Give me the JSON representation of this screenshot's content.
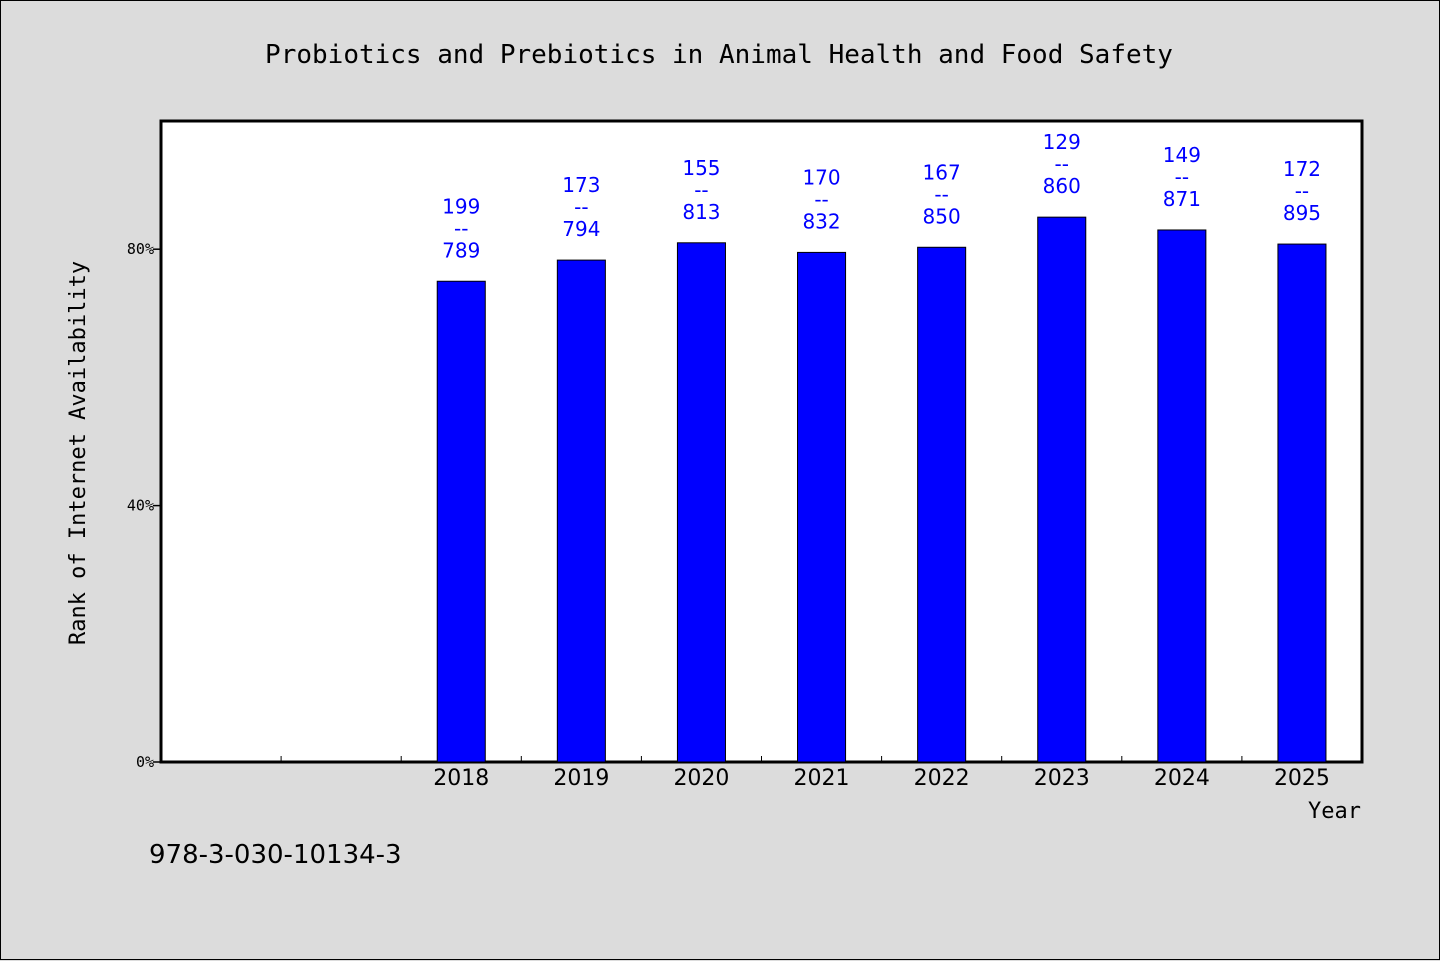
{
  "chart_data": {
    "type": "bar",
    "title": "Probiotics and Prebiotics in Animal Health and Food Safety",
    "xlabel": "Year",
    "ylabel": "Rank of Internet Availability",
    "categories": [
      "",
      "",
      "2018",
      "2019",
      "2020",
      "2021",
      "2022",
      "2023",
      "2024",
      "2025"
    ],
    "values": [
      null,
      null,
      75,
      78.3,
      81,
      79.5,
      80.3,
      85,
      83,
      80.8
    ],
    "data_labels": [
      null,
      null,
      [
        "199",
        "--",
        "789"
      ],
      [
        "173",
        "--",
        "794"
      ],
      [
        "155",
        "--",
        "813"
      ],
      [
        "170",
        "--",
        "832"
      ],
      [
        "167",
        "--",
        "850"
      ],
      [
        "129",
        "--",
        "860"
      ],
      [
        "149",
        "--",
        "871"
      ],
      [
        "172",
        "--",
        "895"
      ]
    ],
    "ylim": [
      0,
      100
    ],
    "yticks": [
      0,
      40,
      80
    ],
    "ytick_labels": [
      "0%",
      "40%",
      "80%"
    ],
    "bar_color": "#0000ff",
    "label_color": "#0000ff",
    "grid": false,
    "legend": "none"
  },
  "footer": {
    "isbn": "978-3-030-10134-3"
  }
}
